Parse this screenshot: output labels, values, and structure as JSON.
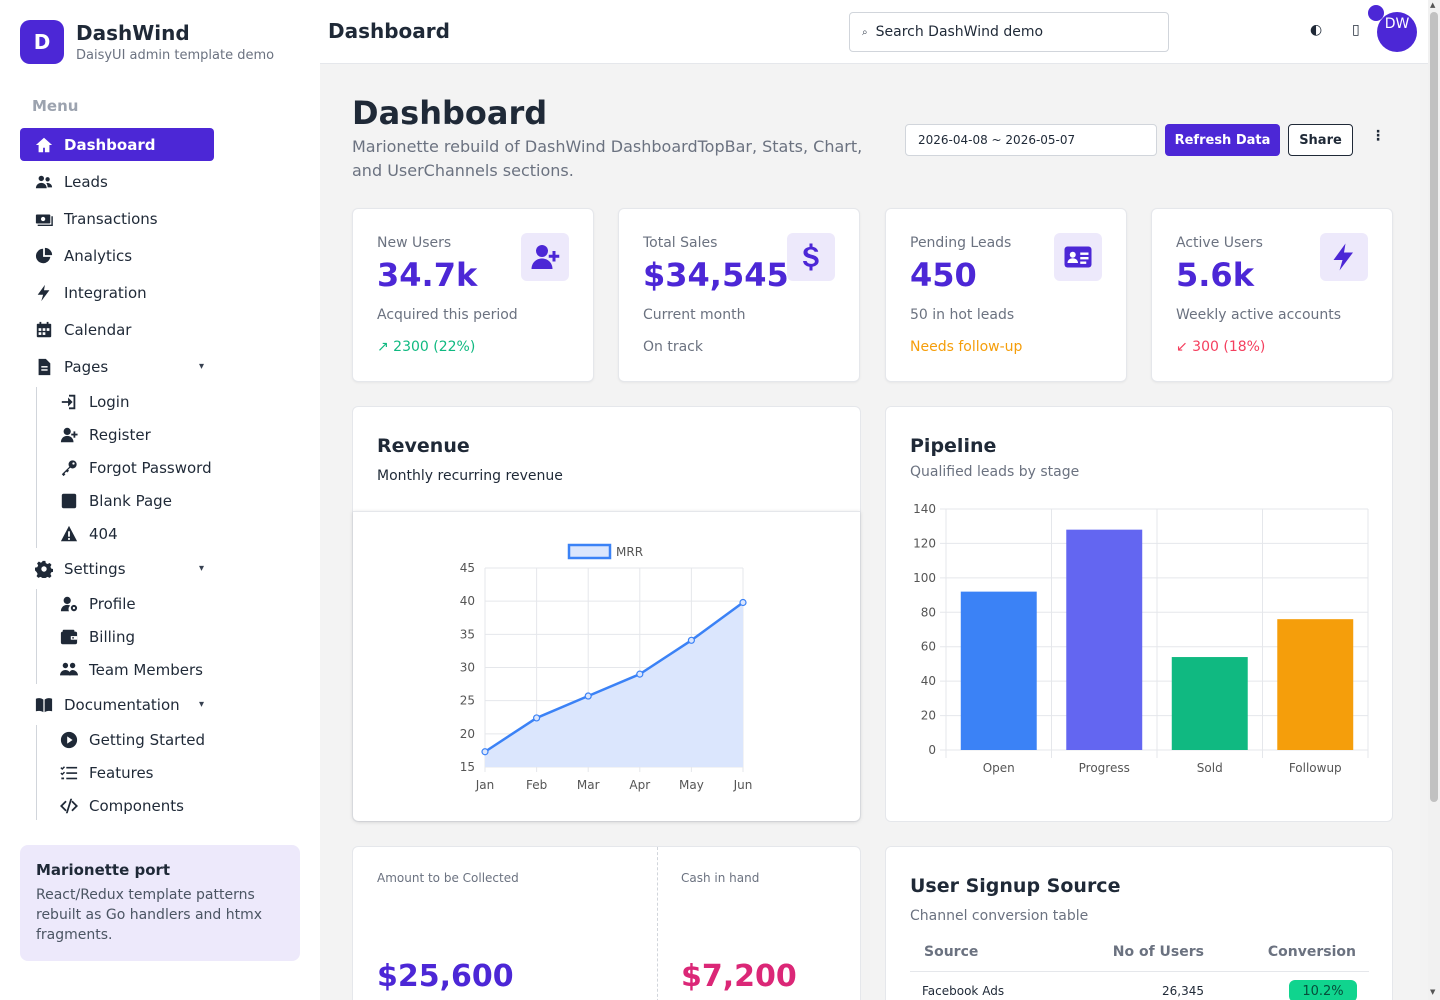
{
  "brand": {
    "initial": "D",
    "title": "DashWind",
    "subtitle": "DaisyUI admin template demo"
  },
  "sidebar": {
    "menu_heading": "Menu",
    "items": [
      {
        "label": "Dashboard",
        "icon": "home-icon",
        "active": true
      },
      {
        "label": "Leads",
        "icon": "users-icon"
      },
      {
        "label": "Transactions",
        "icon": "money-icon"
      },
      {
        "label": "Analytics",
        "icon": "pie-chart-icon"
      },
      {
        "label": "Integration",
        "icon": "bolt-icon"
      },
      {
        "label": "Calendar",
        "icon": "calendar-icon"
      },
      {
        "label": "Pages",
        "icon": "document-icon",
        "expandable": true,
        "children": [
          {
            "label": "Login",
            "icon": "login-icon"
          },
          {
            "label": "Register",
            "icon": "user-plus-icon"
          },
          {
            "label": "Forgot Password",
            "icon": "key-icon"
          },
          {
            "label": "Blank Page",
            "icon": "square-icon"
          },
          {
            "label": "404",
            "icon": "warning-icon"
          }
        ]
      },
      {
        "label": "Settings",
        "icon": "gear-icon",
        "expandable": true,
        "children": [
          {
            "label": "Profile",
            "icon": "user-cog-icon"
          },
          {
            "label": "Billing",
            "icon": "wallet-icon"
          },
          {
            "label": "Team Members",
            "icon": "team-icon"
          }
        ]
      },
      {
        "label": "Documentation",
        "icon": "book-icon",
        "expandable": true,
        "children": [
          {
            "label": "Getting Started",
            "icon": "play-icon"
          },
          {
            "label": "Features",
            "icon": "list-check-icon"
          },
          {
            "label": "Components",
            "icon": "code-icon"
          }
        ]
      }
    ],
    "caret": "▾",
    "port_card": {
      "title": "Marionette port",
      "text": "React/Redux template patterns rebuilt as Go handlers and htmx fragments."
    }
  },
  "topbar": {
    "title": "Dashboard",
    "search_text": "Search DashWind demo",
    "theme_icon": "◐",
    "bell_icon": "▯",
    "avatar_text": "DW"
  },
  "page": {
    "title": "Dashboard",
    "subtitle": "Marionette rebuild of DashWind DashboardTopBar, Stats, Chart, and UserChannels sections.",
    "date_range": "2026-04-08 ~ 2026-05-07",
    "refresh_label": "Refresh Data",
    "share_label": "Share",
    "more_icon": "⋮"
  },
  "stats": [
    {
      "label": "New Users",
      "value": "34.7k",
      "desc": "Acquired this period",
      "trend": "↗ 2300 (22%)",
      "trend_color": "#10b981",
      "icon": "user-plus-icon"
    },
    {
      "label": "Total Sales",
      "value": "$34,545",
      "desc": "Current month",
      "trend": "On track",
      "trend_color": "#6b7280",
      "icon": "dollar-icon"
    },
    {
      "label": "Pending Leads",
      "value": "450",
      "desc": "50 in hot leads",
      "trend": "Needs follow-up",
      "trend_color": "#f59e0b",
      "icon": "id-card-icon"
    },
    {
      "label": "Active Users",
      "value": "5.6k",
      "desc": "Weekly active accounts",
      "trend": "↙ 300 (18%)",
      "trend_color": "#f43f5e",
      "icon": "bolt-icon"
    }
  ],
  "revenue": {
    "title": "Revenue",
    "subtitle": "Monthly recurring revenue"
  },
  "pipeline": {
    "title": "Pipeline",
    "subtitle": "Qualified leads by stage"
  },
  "collections": {
    "amount_label": "Amount to be Collected",
    "amount_value": "$25,600",
    "amount_color": "#4c27d6",
    "cash_label": "Cash in hand",
    "cash_value": "$7,200",
    "cash_color": "#db2777"
  },
  "signup": {
    "title": "User Signup Source",
    "subtitle": "Channel conversion table",
    "columns": [
      "Source",
      "No of Users",
      "Conversion"
    ],
    "rows": [
      {
        "source": "Facebook Ads",
        "users": "26,345",
        "conversion": "10.2%"
      }
    ]
  },
  "chart_data": [
    {
      "type": "area",
      "x": [
        "Jan",
        "Feb",
        "Mar",
        "Apr",
        "May",
        "Jun"
      ],
      "series": [
        {
          "name": "MRR",
          "values": [
            17.3,
            22.4,
            25.7,
            29.0,
            34.1,
            39.8
          ]
        }
      ],
      "ylim": [
        15,
        45
      ],
      "yticks": [
        15,
        20,
        25,
        30,
        35,
        40,
        45
      ],
      "grid": true,
      "legend": "top",
      "color": "#3b82f6"
    },
    {
      "type": "bar",
      "categories": [
        "Open",
        "Progress",
        "Sold",
        "Followup"
      ],
      "values": [
        92,
        128,
        54,
        76
      ],
      "colors": [
        "#3b82f6",
        "#6366f1",
        "#10b981",
        "#f59e0b"
      ],
      "ylim": [
        0,
        140
      ],
      "yticks": [
        0,
        20,
        40,
        60,
        80,
        100,
        120,
        140
      ],
      "grid": true
    }
  ]
}
